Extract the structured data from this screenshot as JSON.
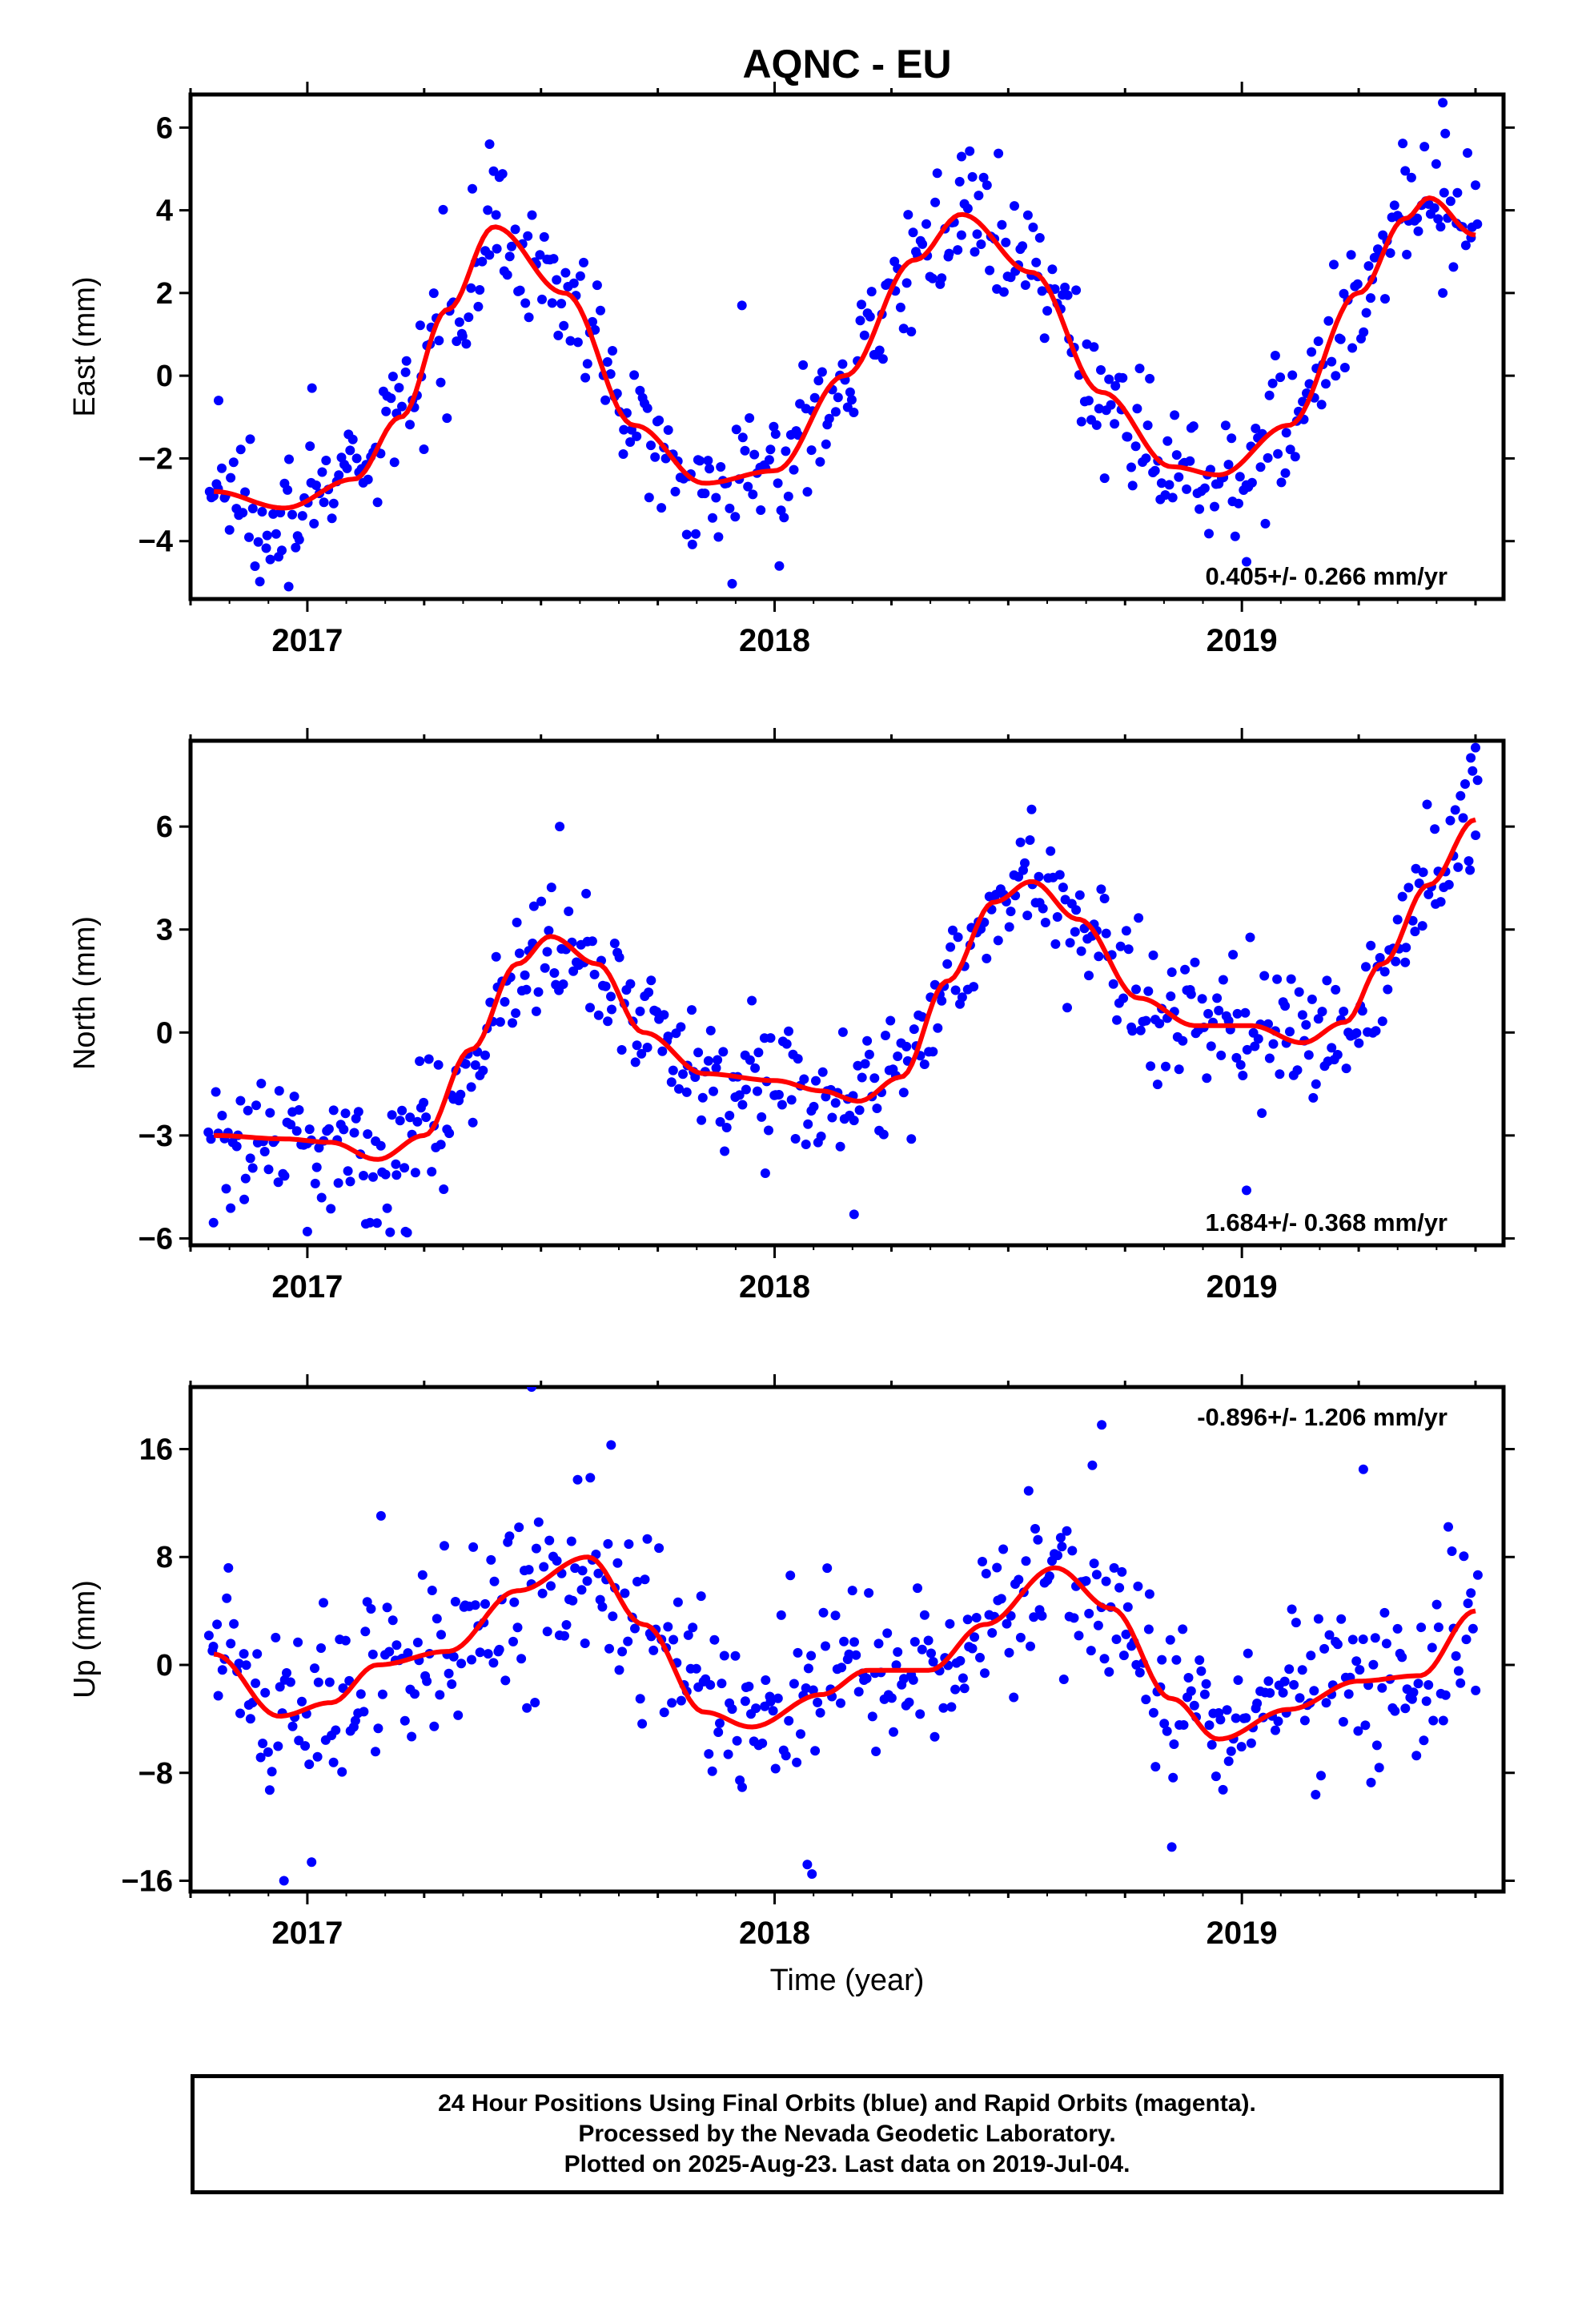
{
  "title": "AQNC - EU",
  "xlabel": "Time (year)",
  "caption": {
    "line1": "24 Hour Positions Using Final Orbits (blue) and Rapid Orbits (magenta).",
    "line2": "Processed by the Nevada Geodetic Laboratory.",
    "line3": "Plotted on 2025-Aug-23. Last data on 2019-Jul-04."
  },
  "colors": {
    "points": "#0000ff",
    "fit": "#ff0000",
    "frame": "#000000"
  },
  "chart_data": [
    {
      "type": "scatter",
      "ylabel": "East (mm)",
      "rate_label": "0.405+/- 0.266 mm/yr",
      "rate_position": "bottom-right",
      "xlim": [
        2016.75,
        2019.56
      ],
      "ylim": [
        -5.4,
        6.8
      ],
      "yticks": [
        -4,
        -2,
        0,
        2,
        4,
        6
      ],
      "xticks": [
        2017,
        2018,
        2019
      ],
      "fit_model": {
        "offset": 0.1,
        "rate": 0.405,
        "ref_epoch": 2018.0,
        "annual_sin": -3.1,
        "annual_cos": -0.6,
        "semiannual_sin": -0.1,
        "semiannual_cos": -0.2
      },
      "fit_curve": [
        {
          "x": 2016.8,
          "y": -2.8
        },
        {
          "x": 2016.95,
          "y": -3.2
        },
        {
          "x": 2017.1,
          "y": -2.5
        },
        {
          "x": 2017.2,
          "y": -1.0
        },
        {
          "x": 2017.3,
          "y": 1.6
        },
        {
          "x": 2017.4,
          "y": 3.6
        },
        {
          "x": 2017.55,
          "y": 2.0
        },
        {
          "x": 2017.7,
          "y": -1.2
        },
        {
          "x": 2017.85,
          "y": -2.6
        },
        {
          "x": 2018.0,
          "y": -2.3
        },
        {
          "x": 2018.15,
          "y": 0.0
        },
        {
          "x": 2018.3,
          "y": 2.8
        },
        {
          "x": 2018.4,
          "y": 3.9
        },
        {
          "x": 2018.55,
          "y": 2.5
        },
        {
          "x": 2018.7,
          "y": -0.4
        },
        {
          "x": 2018.85,
          "y": -2.2
        },
        {
          "x": 2018.95,
          "y": -2.4
        },
        {
          "x": 2019.1,
          "y": -1.2
        },
        {
          "x": 2019.25,
          "y": 2.0
        },
        {
          "x": 2019.35,
          "y": 3.8
        },
        {
          "x": 2019.4,
          "y": 4.3
        },
        {
          "x": 2019.5,
          "y": 3.4
        }
      ],
      "scatter_sigma": 0.75,
      "outliers": [
        {
          "x": 2016.81,
          "y": -0.6
        },
        {
          "x": 2016.96,
          "y": -5.1
        },
        {
          "x": 2017.01,
          "y": -0.3
        },
        {
          "x": 2017.39,
          "y": 5.6
        },
        {
          "x": 2017.93,
          "y": 1.7
        },
        {
          "x": 2018.01,
          "y": -4.6
        },
        {
          "x": 2018.4,
          "y": 5.3
        },
        {
          "x": 2019.01,
          "y": -4.5
        },
        {
          "x": 2019.43,
          "y": 6.6
        },
        {
          "x": 2019.43,
          "y": 2.0
        }
      ],
      "legend": ""
    },
    {
      "type": "scatter",
      "ylabel": "North (mm)",
      "rate_label": "1.684+/- 0.368 mm/yr",
      "rate_position": "bottom-right",
      "xlim": [
        2016.75,
        2019.56
      ],
      "ylim": [
        -6.2,
        8.5
      ],
      "yticks": [
        -6,
        -3,
        0,
        3,
        6
      ],
      "xticks": [
        2017,
        2018,
        2019
      ],
      "fit_curve": [
        {
          "x": 2016.8,
          "y": -3.0
        },
        {
          "x": 2016.95,
          "y": -3.1
        },
        {
          "x": 2017.05,
          "y": -3.2
        },
        {
          "x": 2017.15,
          "y": -3.7
        },
        {
          "x": 2017.25,
          "y": -3.0
        },
        {
          "x": 2017.35,
          "y": -0.5
        },
        {
          "x": 2017.45,
          "y": 2.0
        },
        {
          "x": 2017.52,
          "y": 2.8
        },
        {
          "x": 2017.62,
          "y": 2.0
        },
        {
          "x": 2017.72,
          "y": 0.0
        },
        {
          "x": 2017.85,
          "y": -1.2
        },
        {
          "x": 2018.0,
          "y": -1.4
        },
        {
          "x": 2018.1,
          "y": -1.7
        },
        {
          "x": 2018.18,
          "y": -2.0
        },
        {
          "x": 2018.27,
          "y": -1.3
        },
        {
          "x": 2018.37,
          "y": 1.5
        },
        {
          "x": 2018.47,
          "y": 3.8
        },
        {
          "x": 2018.55,
          "y": 4.4
        },
        {
          "x": 2018.65,
          "y": 3.3
        },
        {
          "x": 2018.78,
          "y": 1.0
        },
        {
          "x": 2018.9,
          "y": 0.2
        },
        {
          "x": 2019.02,
          "y": 0.2
        },
        {
          "x": 2019.13,
          "y": -0.3
        },
        {
          "x": 2019.22,
          "y": 0.3
        },
        {
          "x": 2019.3,
          "y": 2.0
        },
        {
          "x": 2019.4,
          "y": 4.3
        },
        {
          "x": 2019.5,
          "y": 6.2
        }
      ],
      "scatter_sigma": 0.95,
      "outliers": [
        {
          "x": 2017.54,
          "y": 6.0
        },
        {
          "x": 2017.98,
          "y": -4.1
        },
        {
          "x": 2018.17,
          "y": -5.3
        },
        {
          "x": 2018.55,
          "y": 6.5
        },
        {
          "x": 2019.01,
          "y": -4.6
        },
        {
          "x": 2019.5,
          "y": 8.3
        },
        {
          "x": 2019.49,
          "y": 8.0
        },
        {
          "x": 2017.0,
          "y": -5.8
        },
        {
          "x": 2017.21,
          "y": -5.8
        }
      ],
      "legend": ""
    },
    {
      "type": "scatter",
      "ylabel": "Up (mm)",
      "rate_label": "-0.896+/- 1.206 mm/yr",
      "rate_position": "top-right",
      "xlim": [
        2016.75,
        2019.56
      ],
      "ylim": [
        -16.8,
        20.6
      ],
      "yticks": [
        -16,
        -8,
        0,
        8,
        16
      ],
      "xticks": [
        2017,
        2018,
        2019
      ],
      "fit_curve": [
        {
          "x": 2016.8,
          "y": 0.8
        },
        {
          "x": 2016.94,
          "y": -3.8
        },
        {
          "x": 2017.05,
          "y": -2.8
        },
        {
          "x": 2017.15,
          "y": 0.0
        },
        {
          "x": 2017.3,
          "y": 1.0
        },
        {
          "x": 2017.45,
          "y": 5.5
        },
        {
          "x": 2017.6,
          "y": 8.0
        },
        {
          "x": 2017.72,
          "y": 3.0
        },
        {
          "x": 2017.85,
          "y": -3.5
        },
        {
          "x": 2017.95,
          "y": -4.6
        },
        {
          "x": 2018.1,
          "y": -2.2
        },
        {
          "x": 2018.2,
          "y": -0.4
        },
        {
          "x": 2018.33,
          "y": -0.4
        },
        {
          "x": 2018.45,
          "y": 3.0
        },
        {
          "x": 2018.6,
          "y": 7.2
        },
        {
          "x": 2018.72,
          "y": 4.2
        },
        {
          "x": 2018.85,
          "y": -2.5
        },
        {
          "x": 2018.95,
          "y": -5.5
        },
        {
          "x": 2019.1,
          "y": -3.3
        },
        {
          "x": 2019.25,
          "y": -1.2
        },
        {
          "x": 2019.38,
          "y": -0.8
        },
        {
          "x": 2019.5,
          "y": 4.0
        }
      ],
      "scatter_sigma": 3.2,
      "outliers": [
        {
          "x": 2017.48,
          "y": 20.6
        },
        {
          "x": 2017.65,
          "y": 16.3
        },
        {
          "x": 2018.08,
          "y": -15.5
        },
        {
          "x": 2018.07,
          "y": -14.8
        },
        {
          "x": 2016.95,
          "y": -16.0
        },
        {
          "x": 2018.7,
          "y": 17.8
        },
        {
          "x": 2018.68,
          "y": 14.8
        },
        {
          "x": 2019.26,
          "y": 14.5
        },
        {
          "x": 2018.85,
          "y": -13.5
        }
      ],
      "legend": ""
    }
  ]
}
